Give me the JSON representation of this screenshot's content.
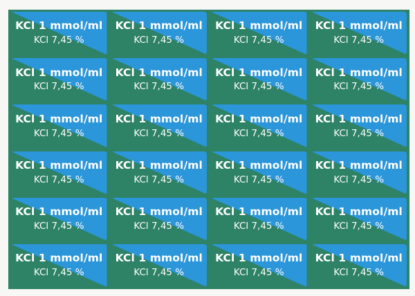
{
  "colors": {
    "sheet_background": "#f7f7f5",
    "label_green": "#2e8266",
    "label_blue": "#2b96d9",
    "text": "#ffffff"
  },
  "labels": [
    {
      "concentration": "KCl 1 mmol/ml",
      "percentage": "KCl 7,45 %"
    },
    {
      "concentration": "KCl 1 mmol/ml",
      "percentage": "KCl 7,45 %"
    },
    {
      "concentration": "KCl 1 mmol/ml",
      "percentage": "KCl 7,45 %"
    },
    {
      "concentration": "KCl 1 mmol/ml",
      "percentage": "KCl 7,45 %"
    },
    {
      "concentration": "KCl 1 mmol/ml",
      "percentage": "KCl 7,45 %"
    },
    {
      "concentration": "KCl 1 mmol/ml",
      "percentage": "KCl 7,45 %"
    },
    {
      "concentration": "KCl 1 mmol/ml",
      "percentage": "KCl 7,45 %"
    },
    {
      "concentration": "KCl 1 mmol/ml",
      "percentage": "KCl 7,45 %"
    },
    {
      "concentration": "KCl 1 mmol/ml",
      "percentage": "KCl 7,45 %"
    },
    {
      "concentration": "KCl 1 mmol/ml",
      "percentage": "KCl 7,45 %"
    },
    {
      "concentration": "KCl 1 mmol/ml",
      "percentage": "KCl 7,45 %"
    },
    {
      "concentration": "KCl 1 mmol/ml",
      "percentage": "KCl 7,45 %"
    },
    {
      "concentration": "KCl 1 mmol/ml",
      "percentage": "KCl 7,45 %"
    },
    {
      "concentration": "KCl 1 mmol/ml",
      "percentage": "KCl 7,45 %"
    },
    {
      "concentration": "KCl 1 mmol/ml",
      "percentage": "KCl 7,45 %"
    },
    {
      "concentration": "KCl 1 mmol/ml",
      "percentage": "KCl 7,45 %"
    },
    {
      "concentration": "KCl 1 mmol/ml",
      "percentage": "KCl 7,45 %"
    },
    {
      "concentration": "KCl 1 mmol/ml",
      "percentage": "KCl 7,45 %"
    },
    {
      "concentration": "KCl 1 mmol/ml",
      "percentage": "KCl 7,45 %"
    },
    {
      "concentration": "KCl 1 mmol/ml",
      "percentage": "KCl 7,45 %"
    },
    {
      "concentration": "KCl 1 mmol/ml",
      "percentage": "KCl 7,45 %"
    },
    {
      "concentration": "KCl 1 mmol/ml",
      "percentage": "KCl 7,45 %"
    },
    {
      "concentration": "KCl 1 mmol/ml",
      "percentage": "KCl 7,45 %"
    },
    {
      "concentration": "KCl 1 mmol/ml",
      "percentage": "KCl 7,45 %"
    }
  ]
}
